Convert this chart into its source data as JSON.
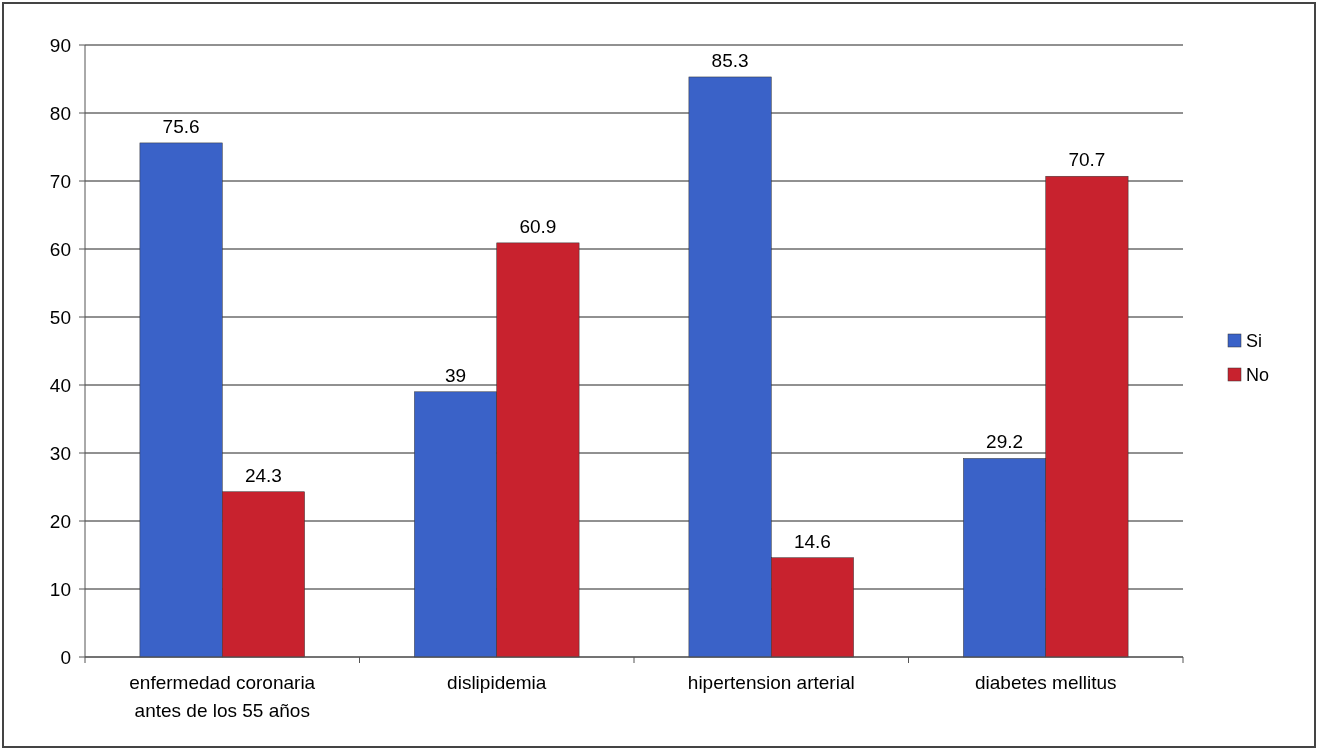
{
  "chart_data": {
    "type": "bar",
    "categories": [
      "enfermedad coronaria\nantes de los 55 años",
      "dislipidemia",
      "hipertension arterial",
      "diabetes mellitus"
    ],
    "series": [
      {
        "name": "Si",
        "color": "#3a62c8",
        "values": [
          75.6,
          39,
          85.3,
          29.2
        ]
      },
      {
        "name": "No",
        "color": "#c8222e",
        "values": [
          24.3,
          60.9,
          14.6,
          70.7
        ]
      }
    ],
    "ylim": [
      0,
      90
    ],
    "yticks": [
      0,
      10,
      20,
      30,
      40,
      50,
      60,
      70,
      80,
      90
    ],
    "grid": "y",
    "legend": "right",
    "data_labels": true
  }
}
